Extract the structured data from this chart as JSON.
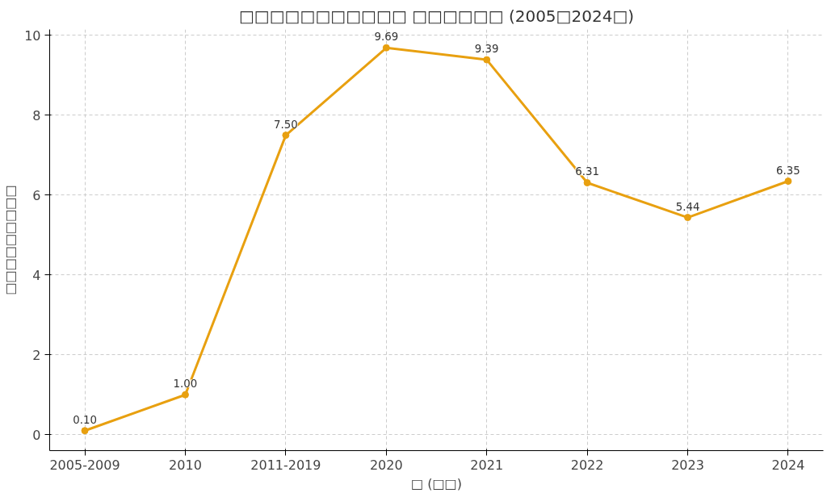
{
  "chart_data": {
    "type": "line",
    "title": "□□□□□□□□□□□ □□□□□□ (2005□2024□)",
    "xlabel": "□ (□□)",
    "ylabel": "□□□□□□□□□",
    "categories": [
      "2005-2009",
      "2010",
      "2011-2019",
      "2020",
      "2021",
      "2022",
      "2023",
      "2024"
    ],
    "series": [
      {
        "color": "#e8a010",
        "values": [
          0.1,
          1.0,
          7.5,
          9.69,
          9.39,
          6.31,
          5.44,
          6.35
        ],
        "value_labels": [
          "0.10",
          "1.00",
          "7.50",
          "9.69",
          "9.39",
          "6.31",
          "5.44",
          "6.35"
        ]
      }
    ],
    "ylim": [
      -0.4,
      10.15
    ],
    "yticks": [
      0,
      2,
      4,
      6,
      8,
      10
    ],
    "grid": true,
    "marker": "circle",
    "line_style": "solid"
  }
}
